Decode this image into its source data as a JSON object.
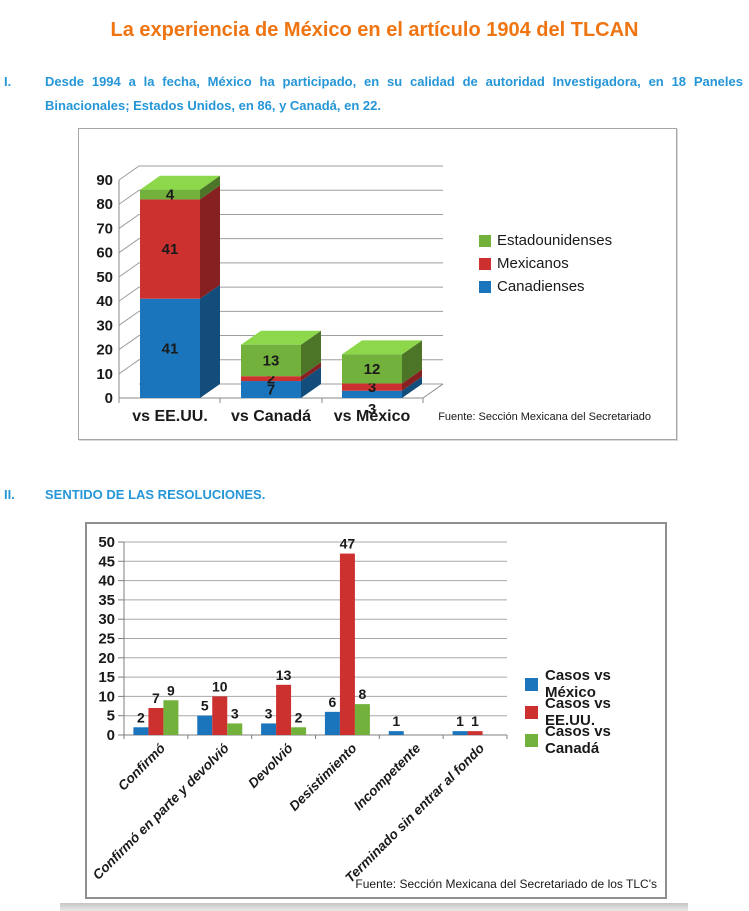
{
  "title": "La experiencia de México en el artículo 1904 del TLCAN",
  "sections": [
    {
      "numeral": "I.",
      "text": "Desde 1994 a la fecha, México ha participado, en su calidad de autoridad Investigadora, en 18 Paneles Binacionales; Estados Unidos, en 86, y Canadá, en 22."
    },
    {
      "numeral": "II.",
      "text": "SENTIDO DE LAS RESOLUCIONES."
    }
  ],
  "colors": {
    "title_orange": "#EF7412",
    "text_blue": "#2596D7",
    "series_blue": "#1B75BC",
    "series_red": "#CC3130",
    "series_green": "#73B13D",
    "gridline_gray": "#9E9E9E"
  },
  "chart_data": [
    {
      "type": "bar",
      "variant": "3d-stacked-column",
      "title": "",
      "categories": [
        "vs EE.UU.",
        "vs Canadá",
        "vs México"
      ],
      "series": [
        {
          "name": "Canadienses",
          "color": "#1B75BC",
          "values": [
            41,
            7,
            3
          ]
        },
        {
          "name": "Mexicanos",
          "color": "#CC3130",
          "values": [
            41,
            2,
            3
          ]
        },
        {
          "name": "Estadounidenses",
          "color": "#73B13D",
          "values": [
            4,
            13,
            12
          ]
        }
      ],
      "category_totals": [
        86,
        22,
        18
      ],
      "ylim": [
        0,
        90
      ],
      "ytick_step": 10,
      "grid": true,
      "legend_position": "right",
      "legend_reversed": true,
      "source": "Fuente: Sección Mexicana del Secretariado"
    },
    {
      "type": "bar",
      "variant": "clustered-column",
      "title": "",
      "categories": [
        "Confirmó",
        "Confirmó en parte y devolvió",
        "Devolvió",
        "Desistimiento",
        "Incompetente",
        "Terminado sin entrar al fondo"
      ],
      "series": [
        {
          "name": "Casos vs México",
          "color": "#1B75BC",
          "values": [
            2,
            5,
            3,
            6,
            1,
            1
          ]
        },
        {
          "name": "Casos vs EE.UU.",
          "color": "#CC3130",
          "values": [
            7,
            10,
            13,
            47,
            0,
            1
          ]
        },
        {
          "name": "Casos vs Canadá",
          "color": "#73B13D",
          "values": [
            9,
            3,
            2,
            8,
            0,
            0
          ]
        }
      ],
      "ylim": [
        0,
        50
      ],
      "ytick_step": 5,
      "grid": true,
      "legend_position": "right",
      "legend_reversed": false,
      "source": "Fuente: Sección Mexicana del Secretariado de los TLC's"
    }
  ]
}
